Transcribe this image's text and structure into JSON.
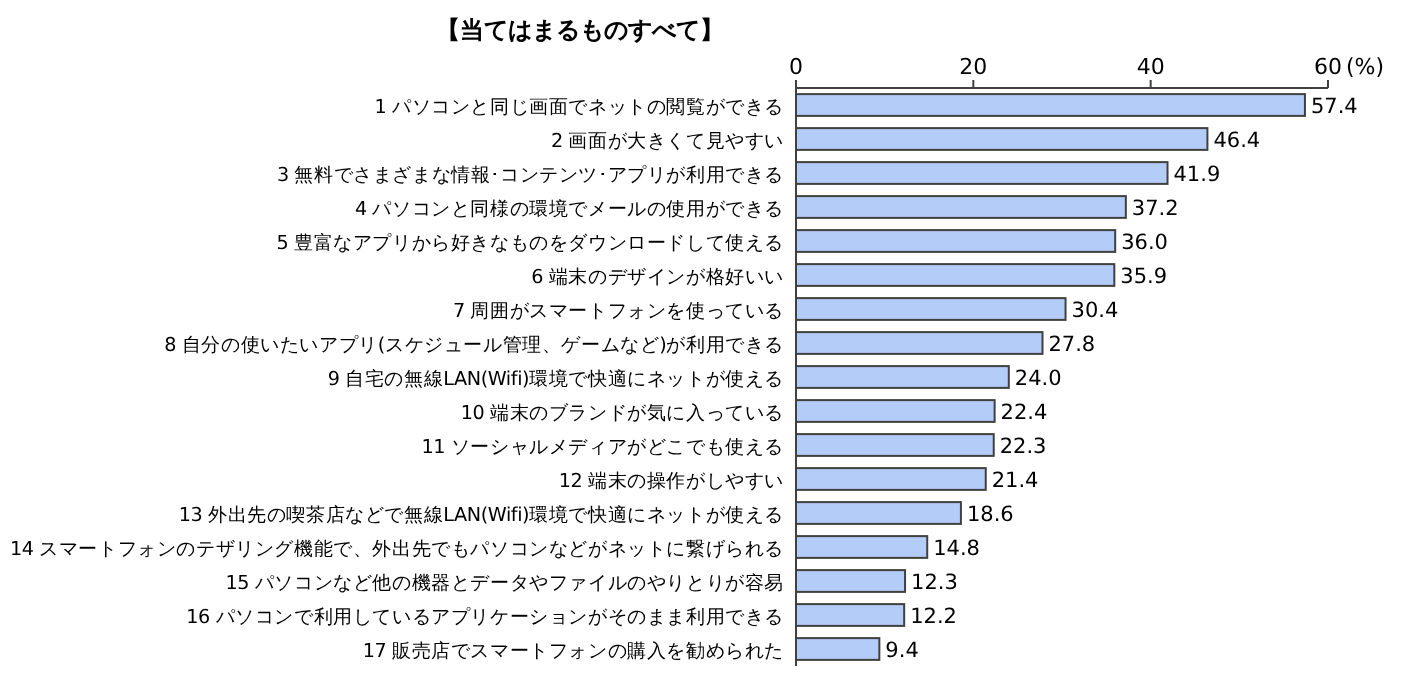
{
  "chart_data": {
    "type": "bar",
    "orientation": "horizontal",
    "title": "【当てはまるものすべて】",
    "xlabel": "(%)",
    "categories": [
      "1 パソコンと同じ画面でネットの閲覧ができる",
      "2 画面が大きくて見やすい",
      "3 無料でさまざまな情報･コンテンツ･アプリが利用できる",
      "4 パソコンと同様の環境でメールの使用ができる",
      "5 豊富なアプリから好きなものをダウンロードして使える",
      "6 端末のデザインが格好いい",
      "7 周囲がスマートフォンを使っている",
      "8 自分の使いたいアプリ(スケジュール管理、ゲームなど)が利用できる",
      "9 自宅の無線LAN(Wifi)環境で快適にネットが使える",
      "10 端末のブランドが気に入っている",
      "11 ソーシャルメディアがどこでも使える",
      "12 端末の操作がしやすい",
      "13 外出先の喫茶店などで無線LAN(Wifi)環境で快適にネットが使える",
      "14 スマートフォンのテザリング機能で、外出先でもパソコンなどがネットに繋げられる",
      "15 パソコンなど他の機器とデータやファイルのやりとりが容易",
      "16 パソコンで利用しているアプリケーションがそのまま利用できる",
      "17 販売店でスマートフォンの購入を勧められた"
    ],
    "values": [
      57.4,
      46.4,
      41.9,
      37.2,
      36.0,
      35.9,
      30.4,
      27.8,
      24.0,
      22.4,
      22.3,
      21.4,
      18.6,
      14.8,
      12.3,
      12.2,
      9.4
    ],
    "value_labels": [
      "57.4",
      "46.4",
      "41.9",
      "37.2",
      "36.0",
      "35.9",
      "30.4",
      "27.8",
      "24.0",
      "22.4",
      "22.3",
      "21.4",
      "18.6",
      "14.8",
      "12.3",
      "12.2",
      "9.4"
    ],
    "color": "#b4ccf8",
    "xlim": [
      0,
      60
    ],
    "xticks": [
      0,
      20,
      40,
      60
    ]
  }
}
